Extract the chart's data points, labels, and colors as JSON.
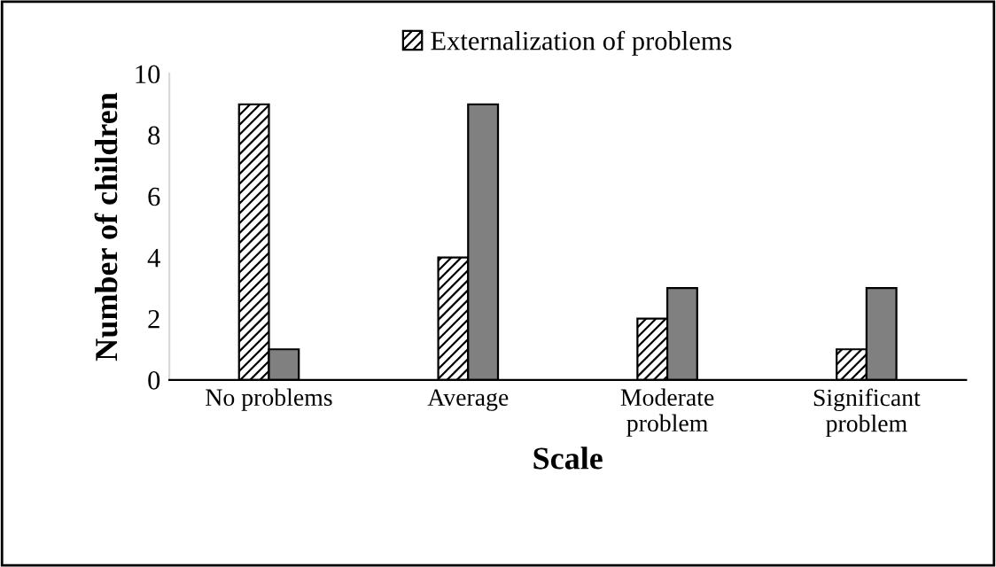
{
  "chart_data": {
    "type": "bar",
    "xlabel": "Scale",
    "ylabel": "Number of children",
    "categories": [
      "No problems",
      "Average",
      "Moderate\nproblem",
      "Significant\nproblem"
    ],
    "series": [
      {
        "name": "Externalization of problems",
        "color": "#000000",
        "values": [
          9,
          4,
          2,
          1
        ]
      },
      {
        "color": "#808080",
        "values": [
          1,
          9,
          3,
          3
        ]
      }
    ],
    "ylim": [
      0,
      10
    ],
    "yticks": [
      0,
      2,
      4,
      6,
      8,
      10
    ],
    "grid": false,
    "legend": "top"
  }
}
